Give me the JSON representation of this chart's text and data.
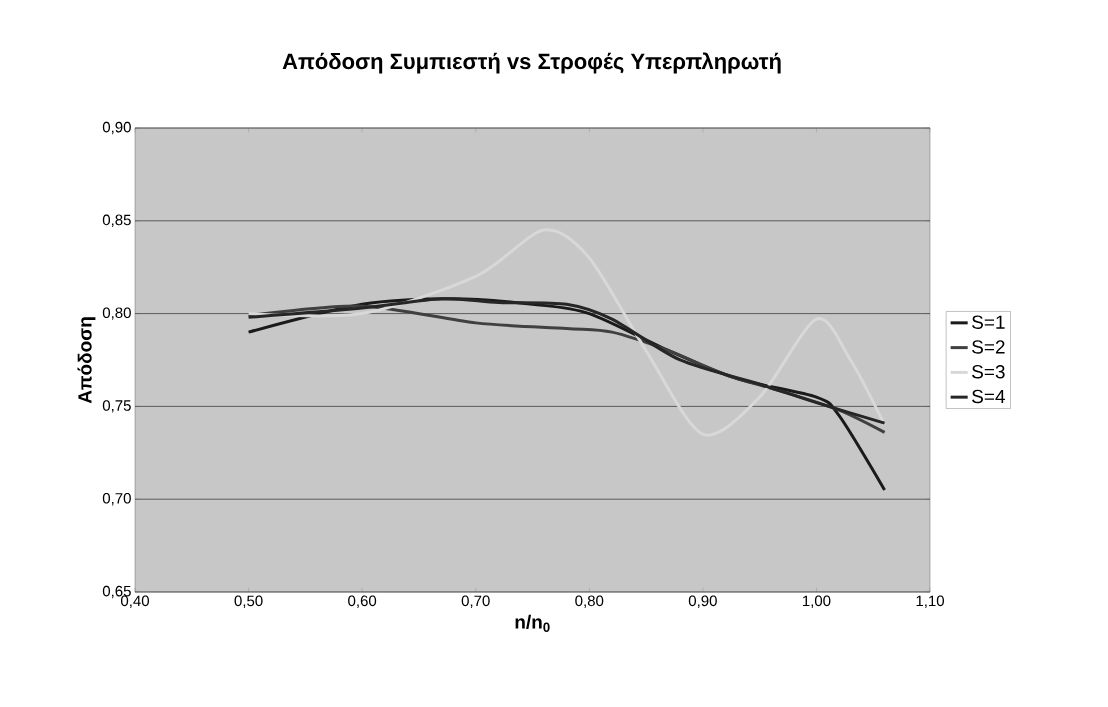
{
  "chart_data": {
    "type": "line",
    "title": "**Απόδοση Συμπιεστή vs Στροφές Υπερπληρωτή**",
    "xlabel": "**n/n$_{0}$**",
    "ylabel": "**Απόδοση**",
    "xlim": [
      0.4,
      1.1
    ],
    "ylim": [
      0.65,
      0.9
    ],
    "xticks": [
      {
        "value": 0.4,
        "label": "0,40"
      },
      {
        "value": 0.5,
        "label": "0,50"
      },
      {
        "value": 0.6,
        "label": "0,60"
      },
      {
        "value": 0.7,
        "label": "0,70"
      },
      {
        "value": 0.8,
        "label": "0,80"
      },
      {
        "value": 0.9,
        "label": "0,90"
      },
      {
        "value": 1.0,
        "label": "1,00"
      },
      {
        "value": 1.1,
        "label": "1,10"
      }
    ],
    "yticks": [
      {
        "value": 0.65,
        "label": "0,65"
      },
      {
        "value": 0.7,
        "label": "0,70"
      },
      {
        "value": 0.75,
        "label": "0,75"
      },
      {
        "value": 0.8,
        "label": "0,80"
      },
      {
        "value": 0.85,
        "label": "0,85"
      },
      {
        "value": 0.9,
        "label": "0,90"
      }
    ],
    "grid": "y",
    "legend": "right",
    "marker": "none",
    "line_style": "solid",
    "series": [
      {
        "name": "S=1",
        "color": "#1a1a1a",
        "x": [
          0.5,
          0.6,
          0.68,
          0.75,
          0.8,
          0.87,
          0.93,
          1.0,
          1.02,
          1.06
        ],
        "values": [
          0.79,
          0.805,
          0.808,
          0.805,
          0.8,
          0.78,
          0.765,
          0.755,
          0.745,
          0.705
        ]
      },
      {
        "name": "S=2",
        "color": "#404040",
        "x": [
          0.5,
          0.6,
          0.7,
          0.78,
          0.82,
          0.87,
          0.92,
          0.97,
          1.02,
          1.06
        ],
        "values": [
          0.799,
          0.804,
          0.795,
          0.792,
          0.79,
          0.78,
          0.767,
          0.758,
          0.748,
          0.736
        ]
      },
      {
        "name": "S=3",
        "color": "#d8d8d8",
        "x": [
          0.5,
          0.6,
          0.7,
          0.76,
          0.8,
          0.85,
          0.9,
          0.95,
          1.0,
          1.03,
          1.06
        ],
        "values": [
          0.8,
          0.8,
          0.82,
          0.845,
          0.83,
          0.78,
          0.735,
          0.755,
          0.797,
          0.775,
          0.74
        ]
      },
      {
        "name": "S=4",
        "color": "#262626",
        "x": [
          0.5,
          0.6,
          0.67,
          0.72,
          0.78,
          0.82,
          0.88,
          0.95,
          1.0,
          1.06
        ],
        "values": [
          0.798,
          0.803,
          0.808,
          0.806,
          0.805,
          0.797,
          0.775,
          0.762,
          0.752,
          0.741
        ]
      }
    ]
  }
}
